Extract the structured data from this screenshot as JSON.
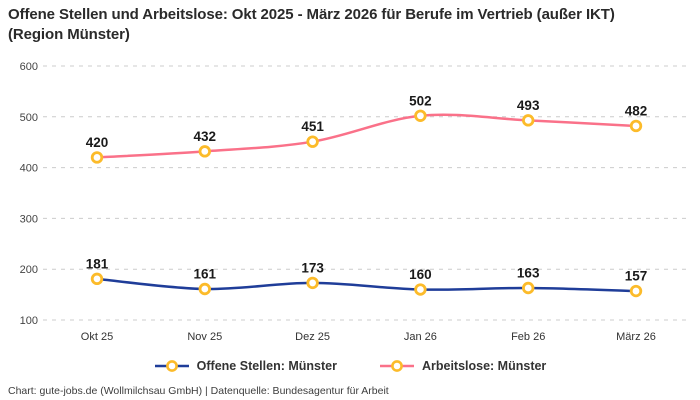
{
  "chart_data": {
    "type": "line",
    "title": "Offene Stellen und Arbeitslose: Okt 2025 - März 2026 für Berufe im Vertrieb (außer IKT) (Region Münster)",
    "categories": [
      "Okt 25",
      "Nov 25",
      "Dez 25",
      "Jan 26",
      "Feb 26",
      "März 26"
    ],
    "series": [
      {
        "name": "Offene Stellen: Münster",
        "color": "#1f3d99",
        "values": [
          181,
          161,
          173,
          160,
          163,
          157
        ]
      },
      {
        "name": "Arbeitslose: Münster",
        "color": "#fa7189",
        "values": [
          420,
          432,
          451,
          502,
          493,
          482
        ]
      }
    ],
    "ylim": [
      100,
      600
    ],
    "yticks": [
      100,
      200,
      300,
      400,
      500,
      600
    ],
    "grid": "horizontal-dashed",
    "gridline_color": "#cccccc",
    "legend_position": "bottom",
    "marker": {
      "shape": "circle",
      "stroke": "#fcbb2a",
      "fill": "#ffffff"
    },
    "label_color": "#1a1a1a",
    "tick_color": "#444444"
  },
  "footer": {
    "text": "Chart: gute-jobs.de (Wollmilchsau GmbH) | Datenquelle: Bundesagentur für Arbeit"
  }
}
